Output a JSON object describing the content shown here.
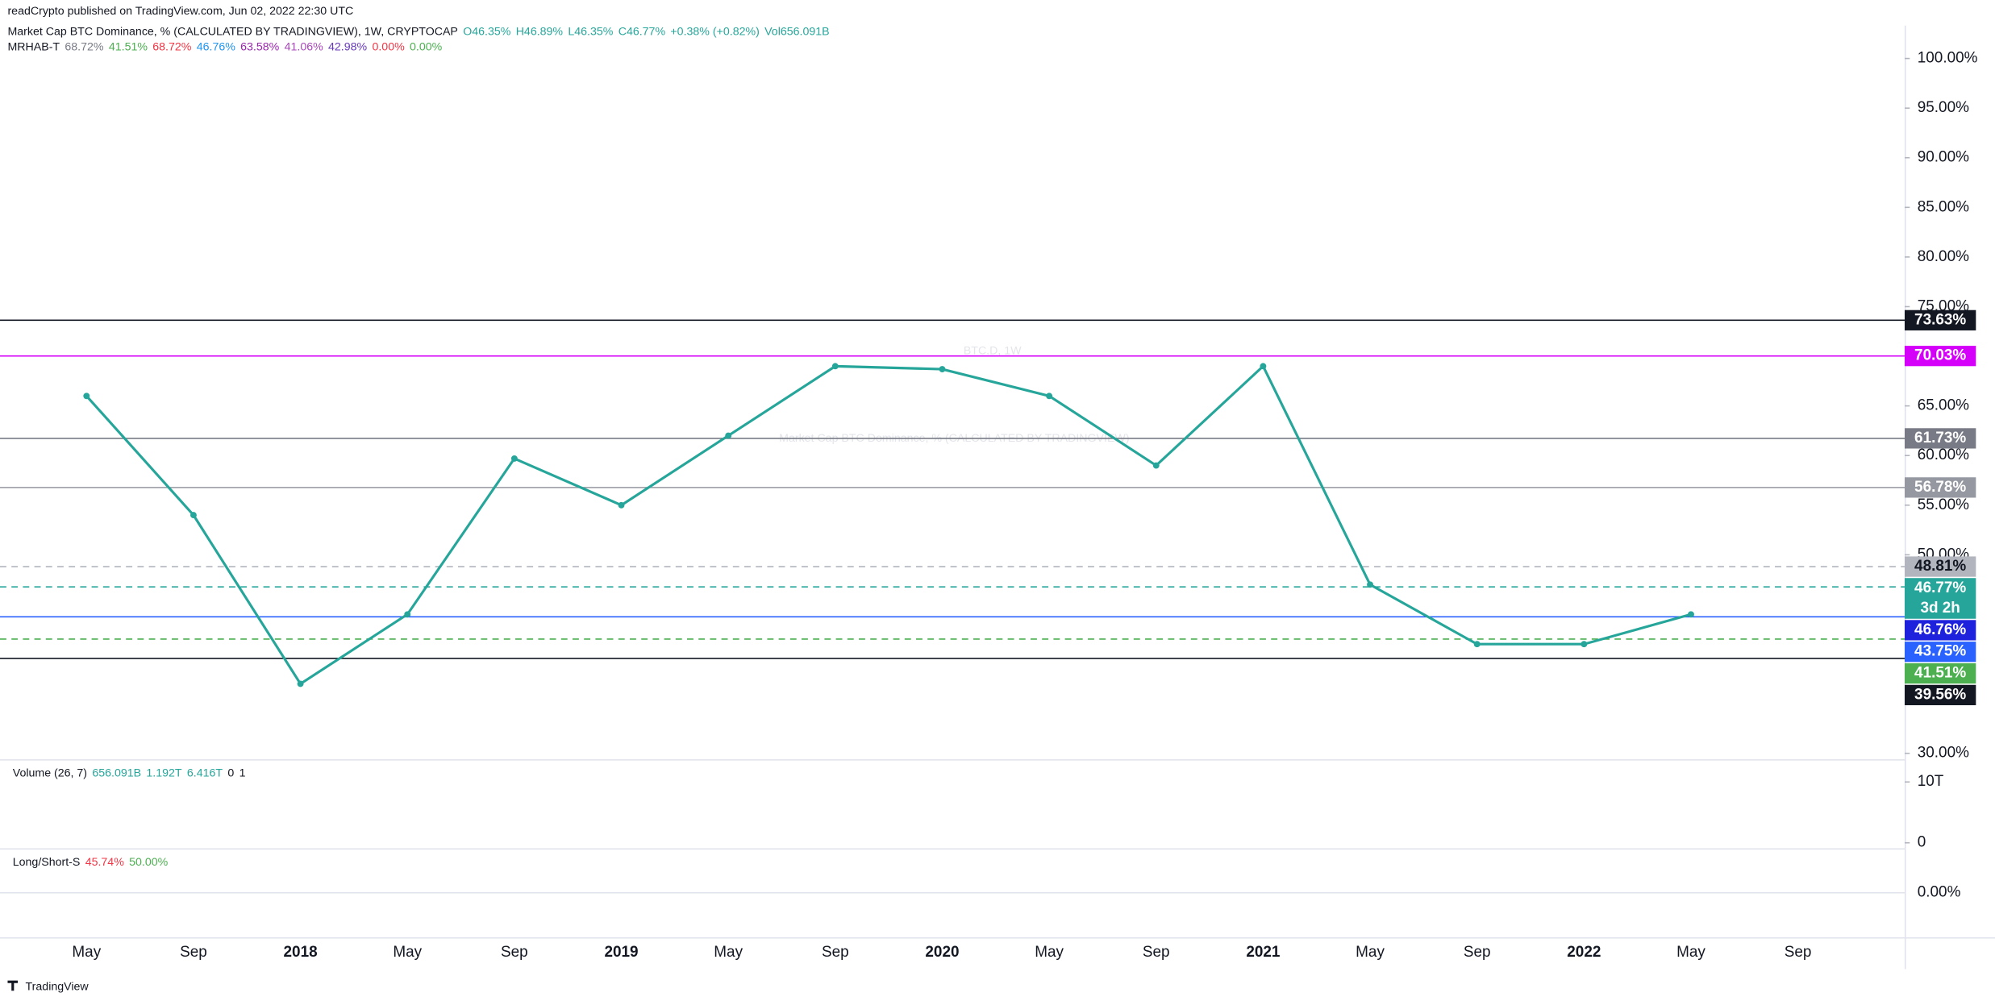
{
  "chart_data": {
    "type": "line",
    "publisher": "readCrypto published on TradingView.com, Jun 02, 2022 22:30 UTC",
    "legend_title": "Market Cap BTC Dominance, % (CALCULATED BY TRADINGVIEW), 1W, CRYPTOCAP",
    "legend_ohlc": [
      "O46.35%",
      "H46.89%",
      "L46.35%",
      "C46.77%",
      "+0.38% (+0.82%)",
      "Vol656.091B"
    ],
    "indicator_name": "MRHAB-T",
    "indicator_values": [
      {
        "text": "68.72%",
        "color": "#787b86"
      },
      {
        "text": "41.51%",
        "color": "#4caf50"
      },
      {
        "text": "68.72%",
        "color": "#f23645"
      },
      {
        "text": "46.76%",
        "color": "#2196f3"
      },
      {
        "text": "63.58%",
        "color": "#9c27b0"
      },
      {
        "text": "41.06%",
        "color": "#ab47bc"
      },
      {
        "text": "42.98%",
        "color": "#673ab7"
      },
      {
        "text": "0.00%",
        "color": "#f23645"
      },
      {
        "text": "0.00%",
        "color": "#4caf50"
      }
    ],
    "watermark": "BTC.D, 1W",
    "watermark_sub": "Market Cap BTC Dominance, % (CALCULATED BY TRADINGVIEW)",
    "categories": [
      "May",
      "Sep",
      "2018",
      "May",
      "Sep",
      "2019",
      "May",
      "Sep",
      "2020",
      "May",
      "Sep",
      "2021",
      "May",
      "Sep",
      "2022",
      "May",
      "Sep"
    ],
    "series": [
      {
        "name": "BTC.D",
        "color": "#26a69a",
        "values": [
          66,
          54,
          37,
          44,
          59.7,
          55,
          62,
          69,
          68.7,
          66,
          59,
          69,
          47,
          41,
          41,
          44,
          null
        ]
      }
    ],
    "ylim": [
      29.4,
      104.6
    ],
    "yticks": [
      {
        "value": 100,
        "label": "100.00%"
      },
      {
        "value": 95,
        "label": "95.00%"
      },
      {
        "value": 90,
        "label": "90.00%"
      },
      {
        "value": 85,
        "label": "85.00%"
      },
      {
        "value": 80,
        "label": "80.00%"
      },
      {
        "value": 75,
        "label": "75.00%"
      },
      {
        "value": 65,
        "label": "65.00%"
      },
      {
        "value": 60,
        "label": "60.00%"
      },
      {
        "value": 55,
        "label": "55.00%"
      },
      {
        "value": 50,
        "label": "50.00%"
      },
      {
        "value": 30,
        "label": "30.00%"
      }
    ],
    "levels": [
      {
        "value": 73.63,
        "label": "73.63%",
        "color": "#131722",
        "text_color": "#ffffff",
        "style": "solid"
      },
      {
        "value": 70.03,
        "label": "70.03%",
        "color": "#d500f9",
        "text_color": "#ffffff",
        "style": "solid"
      },
      {
        "value": 61.73,
        "label": "61.73%",
        "color": "#787b86",
        "text_color": "#ffffff",
        "style": "solid"
      },
      {
        "value": 56.78,
        "label": "56.78%",
        "color": "#9598a1",
        "text_color": "#ffffff",
        "style": "solid"
      },
      {
        "value": 48.81,
        "label": "48.81%",
        "color": "#b2b5be",
        "text_color": "#131722",
        "style": "dashed"
      },
      {
        "value": 46.77,
        "label": "46.77%",
        "sublabel": "3d 2h",
        "color": "#26a69a",
        "text_color": "#ffffff",
        "style": "dashed"
      },
      {
        "value": 46.76,
        "label": "46.76%",
        "color": "#1e22dc",
        "text_color": "#ffffff",
        "style": "none"
      },
      {
        "value": 43.75,
        "label": "43.75%",
        "color": "#2962ff",
        "text_color": "#ffffff",
        "style": "solid"
      },
      {
        "value": 41.51,
        "label": "41.51%",
        "color": "#4caf50",
        "text_color": "#ffffff",
        "style": "dashed"
      },
      {
        "value": 39.56,
        "label": "39.56%",
        "color": "#131722",
        "text_color": "#ffffff",
        "style": "solid"
      }
    ],
    "volume_legend": "Volume (26, 7)",
    "volume_values": [
      "656.091B",
      "1.192T",
      "6.416T",
      "0",
      "1"
    ],
    "volume_ylim": [
      -900000000000,
      13100000000000
    ],
    "volume_yticks": [
      {
        "value": 10000000000000,
        "label": "10T"
      },
      0
    ],
    "ls_legend": "Long/Short-S",
    "ls_values": [
      "45.74%",
      "50.00%"
    ],
    "ls_ylim": [
      -1,
      1
    ],
    "ls_yticks": [
      {
        "value": 0,
        "label": "0.00%"
      }
    ],
    "footer": "TradingView"
  }
}
